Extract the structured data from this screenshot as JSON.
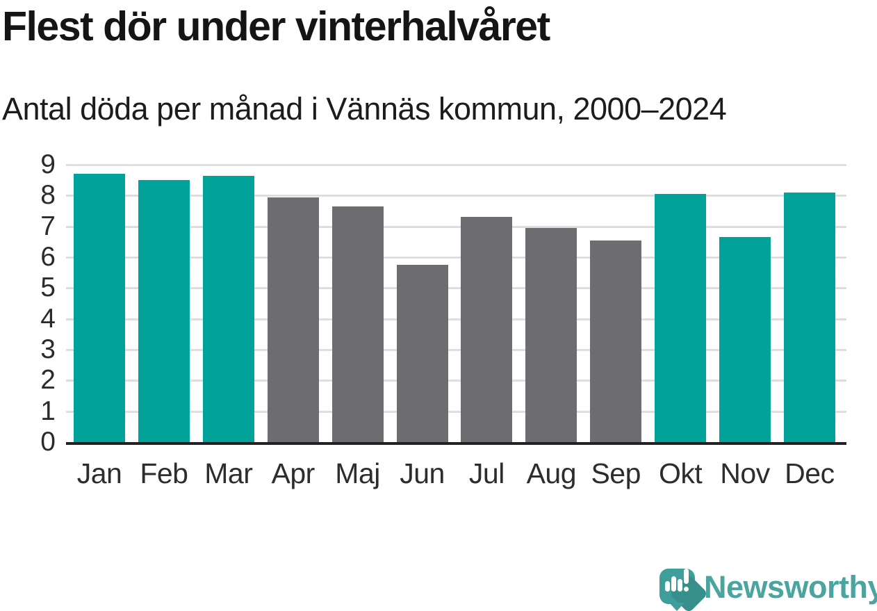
{
  "title": "Flest dör under vinterhalvåret",
  "subtitle": "Antal döda per månad i Vännäs kommun, 2000–2024",
  "chart_data": {
    "type": "bar",
    "title": "Flest dör under vinterhalvåret",
    "subtitle": "Antal döda per månad i Vännäs kommun, 2000–2024",
    "categories": [
      "Jan",
      "Feb",
      "Mar",
      "Apr",
      "Maj",
      "Jun",
      "Jul",
      "Aug",
      "Sep",
      "Okt",
      "Nov",
      "Dec"
    ],
    "values": [
      8.7,
      8.5,
      8.65,
      7.95,
      7.65,
      5.75,
      7.3,
      6.95,
      6.55,
      8.05,
      6.65,
      8.1
    ],
    "highlighted_months": [
      true,
      true,
      true,
      false,
      false,
      false,
      false,
      false,
      false,
      true,
      true,
      true
    ],
    "xlabel": "",
    "ylabel": "",
    "ylim": [
      0,
      9
    ],
    "yticks": [
      "0",
      "1",
      "2",
      "3",
      "4",
      "5",
      "6",
      "7",
      "8",
      "9"
    ],
    "grid": true,
    "legend": "none",
    "highlight_color": "#00a299",
    "base_color": "#6c6c71"
  },
  "colors": {
    "highlight_teal": "#00a299",
    "muted_gray": "#6c6c71",
    "gridline": "#dedede",
    "axis_line": "#222222",
    "title_text": "#151515",
    "logo_teal": "#3e9e99",
    "logo_text_teal": "#4aa49f"
  },
  "footer": {
    "brand": "Newsworthy",
    "logo_icon": "speech-bubble-with-bar-chart-and-exclamation"
  }
}
